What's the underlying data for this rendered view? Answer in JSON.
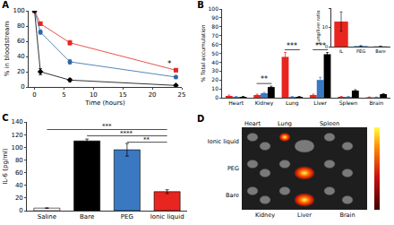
{
  "chart_data": [
    {
      "type": "line",
      "title": "A",
      "x_label": "Time (hours)",
      "y_label": "% in bloodstream",
      "x": [
        0,
        1,
        6,
        24
      ],
      "xlim": [
        -1,
        25
      ],
      "xticks": [
        0,
        5,
        10,
        15,
        20,
        25
      ],
      "ylim": [
        0,
        100
      ],
      "yticks": [
        0,
        20,
        40,
        60,
        80,
        100
      ],
      "series": [
        {
          "color": "#e8251f",
          "marker": "square",
          "values": [
            100,
            83,
            58,
            22
          ],
          "errors": [
            1,
            2,
            3,
            2
          ]
        },
        {
          "color": "#2a67a8",
          "marker": "circle",
          "values": [
            100,
            72,
            33,
            13
          ],
          "errors": [
            1,
            3,
            3,
            2
          ]
        },
        {
          "color": "#000000",
          "marker": "diamond",
          "values": [
            100,
            20,
            9,
            2
          ],
          "errors": [
            1,
            4,
            2,
            1
          ]
        }
      ],
      "annotations": [
        {
          "text": "*",
          "x": 23,
          "y": 31
        }
      ]
    },
    {
      "type": "bar",
      "title": "B",
      "y_label": "% Total accumulation",
      "categories": [
        "Heart",
        "Kidney",
        "Lung",
        "Liver",
        "Spleen",
        "Brain"
      ],
      "ylim": [
        0,
        100
      ],
      "yticks": [
        0,
        10,
        20,
        30,
        40,
        50,
        60,
        70,
        80,
        90,
        100
      ],
      "series": [
        {
          "color": "#e8251f",
          "values": [
            2,
            3,
            46,
            3,
            1,
            0.5
          ],
          "errors": [
            1,
            1,
            5,
            1,
            0.5,
            0.3
          ]
        },
        {
          "color": "#3a78c2",
          "values": [
            1,
            5,
            1,
            20,
            1,
            0.5
          ],
          "errors": [
            0.5,
            1,
            0.5,
            3,
            0.5,
            0.3
          ]
        },
        {
          "color": "#000000",
          "values": [
            1,
            12,
            1,
            49,
            8,
            4
          ],
          "errors": [
            0.5,
            1,
            0.5,
            2,
            1,
            0.5
          ]
        }
      ],
      "significance": [
        {
          "category": "Kidney",
          "y": 16,
          "label": "**"
        },
        {
          "category": "Lung",
          "y": 54,
          "label": "***"
        },
        {
          "category": "Liver",
          "y": 54,
          "label": "***"
        }
      ]
    },
    {
      "type": "bar",
      "y_label": "Lung/liver ratio",
      "categories": [
        "IL",
        "PEG",
        "Bare"
      ],
      "values": [
        13,
        0.3,
        0.1
      ],
      "errors": [
        5,
        0.2,
        0.1
      ],
      "colors": [
        "#e8251f",
        "#3a78c2",
        "#000000"
      ],
      "ylim": [
        0,
        20
      ],
      "yticks": [
        0,
        10,
        20
      ]
    },
    {
      "type": "bar",
      "title": "C",
      "y_label": "IL-6 (pg/ml)",
      "categories": [
        "Saline",
        "Bare",
        "PEG",
        "Ionic liquid"
      ],
      "values": [
        4,
        110,
        96,
        30
      ],
      "errors": [
        0.5,
        3,
        10,
        3
      ],
      "colors": [
        "#ffffff",
        "#000000",
        "#3a78c2",
        "#e8251f"
      ],
      "ylim": [
        0,
        140
      ],
      "yticks": [
        0,
        20,
        40,
        60,
        80,
        100,
        120,
        140
      ],
      "brackets": [
        {
          "from": "Saline",
          "to": "Ionic liquid",
          "y": 128,
          "label": "***"
        },
        {
          "from": "Bare",
          "to": "Ionic liquid",
          "y": 118,
          "label": "****"
        },
        {
          "from": "PEG",
          "to": "Ionic liquid",
          "y": 108,
          "label": "**"
        }
      ]
    },
    {
      "type": "image",
      "title": "D",
      "top_labels": [
        "Heart",
        "Lung",
        "Spleen"
      ],
      "bottom_labels": [
        "Kidney",
        "Liver",
        "Brain"
      ],
      "row_labels": [
        "Ionic liquid",
        "PEG",
        "Bare"
      ]
    }
  ]
}
